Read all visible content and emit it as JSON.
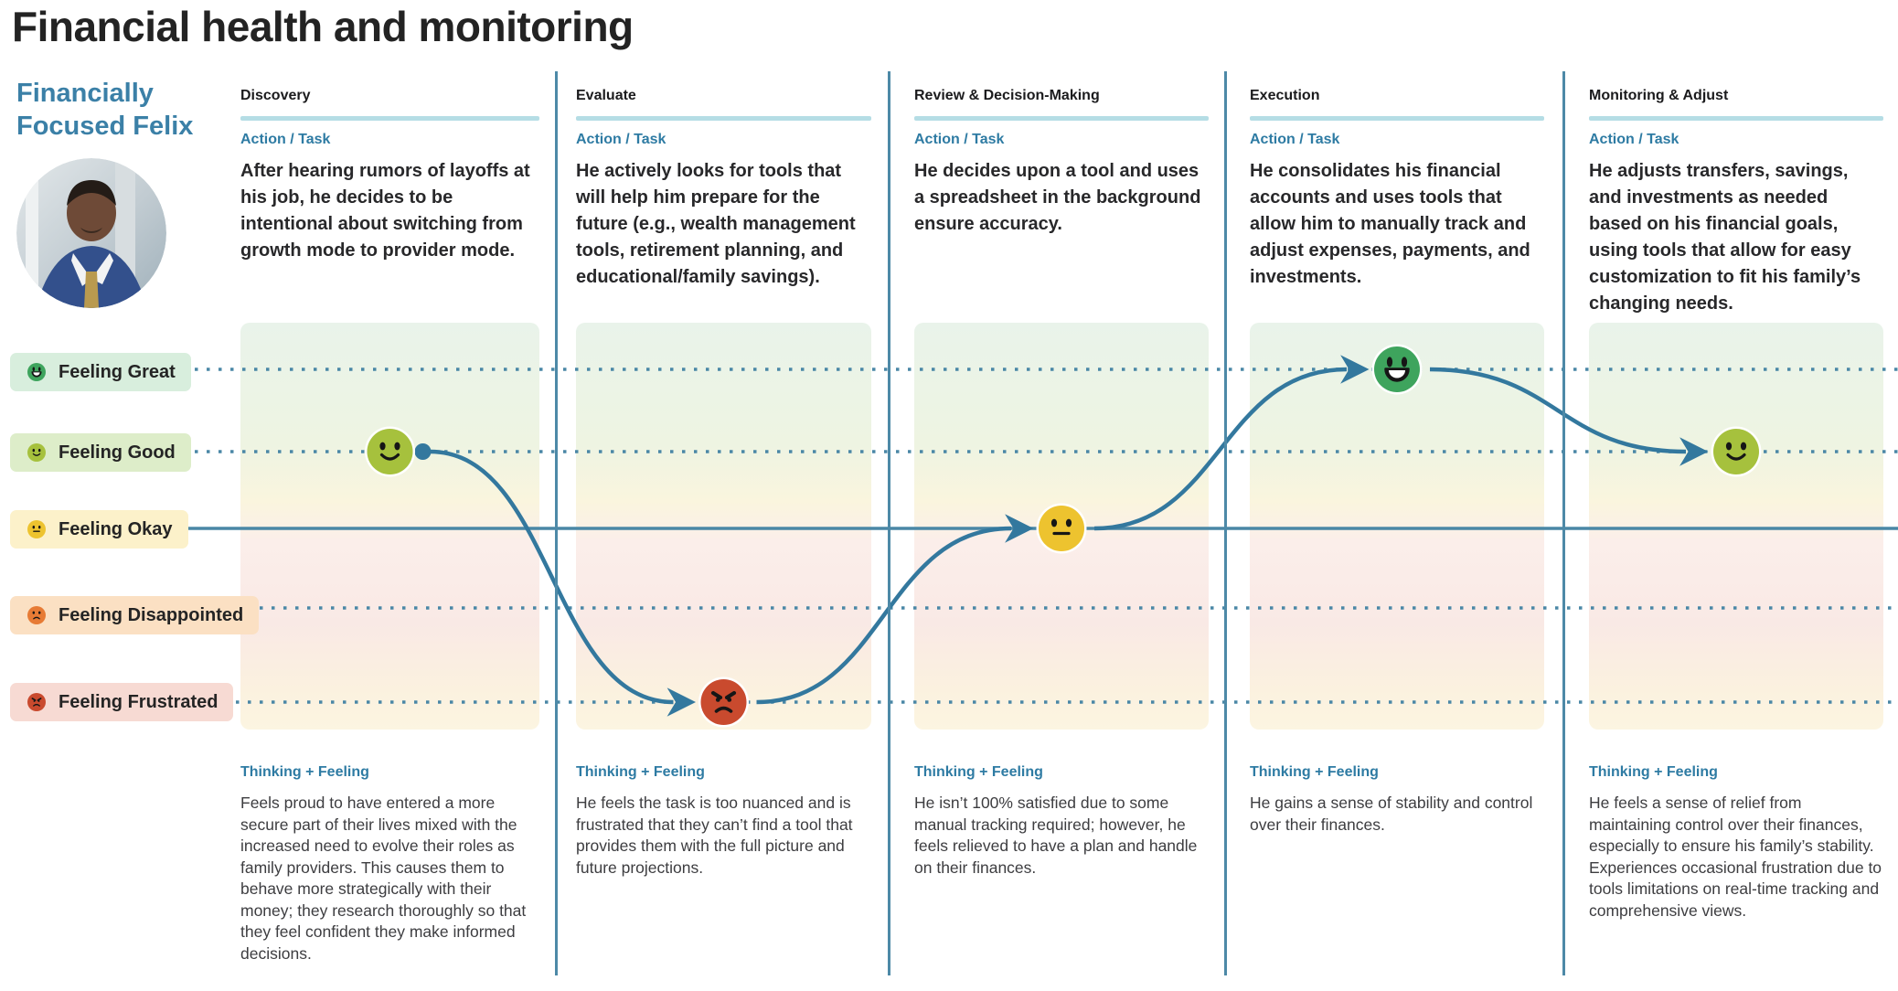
{
  "page": {
    "title": "Financial health and monitoring"
  },
  "persona": {
    "name_line1": "Financially",
    "name_line2": "Focused Felix"
  },
  "labels": {
    "action": "Action / Task",
    "thinking": "Thinking + Feeling"
  },
  "emotion_scale": {
    "levels": [
      {
        "id": "great",
        "label": "Feeling Great"
      },
      {
        "id": "good",
        "label": "Feeling Good"
      },
      {
        "id": "okay",
        "label": "Feeling Okay"
      },
      {
        "id": "disappointed",
        "label": "Feeling Disappointed"
      },
      {
        "id": "frustrated",
        "label": "Feeling Frustrated"
      }
    ]
  },
  "stages": [
    {
      "title": "Discovery",
      "action": "After hearing rumors of layoffs at his job, he decides to be intentional about switching from growth mode to provider mode.",
      "thinking": "Feels proud to have entered a more secure part of their lives mixed with the increased need to evolve their roles as family providers. This causes them to behave more strategically with their money; they research thoroughly so that they feel confident they make informed decisions."
    },
    {
      "title": "Evaluate",
      "action": "He actively looks for tools that will help him prepare for the future (e.g., wealth management tools, retirement planning, and educational/family savings).",
      "thinking": "He feels the task is too nuanced and is frustrated that they can’t find a tool that provides them with the full picture and future projections."
    },
    {
      "title": "Review & Decision-Making",
      "action": "He decides upon a tool and uses a spreadsheet in the background ensure accuracy.",
      "thinking": "He isn’t 100% satisfied due to some manual tracking required; however, he feels relieved to have a plan and handle on their finances."
    },
    {
      "title": "Execution",
      "action": "He consolidates his financial accounts and uses tools that allow him to manually track and adjust expenses, payments, and investments.",
      "thinking": "He gains a sense of stability and control over their finances."
    },
    {
      "title": "Monitoring & Adjust",
      "action": "He adjusts transfers, savings, and investments as needed based on his financial goals, using tools that allow for easy customization to fit his family’s changing needs.",
      "thinking": "He feels a sense of relief from maintaining control over their finances, especially to ensure his family’s stability. Experiences occasional frustration due to tools limitations on real-time tracking and comprehensive views."
    }
  ],
  "chart_data": {
    "type": "line",
    "title": "Emotion journey across stages",
    "x_stages": [
      "Discovery",
      "Evaluate",
      "Review & Decision-Making",
      "Execution",
      "Monitoring & Adjust"
    ],
    "y_levels": [
      "Feeling Great",
      "Feeling Good",
      "Feeling Okay",
      "Feeling Disappointed",
      "Feeling Frustrated"
    ],
    "points": [
      {
        "stage": "Discovery",
        "level": "good"
      },
      {
        "stage": "Evaluate",
        "level": "frustrated"
      },
      {
        "stage": "Review & Decision-Making",
        "level": "okay"
      },
      {
        "stage": "Execution",
        "level": "great"
      },
      {
        "stage": "Monitoring & Adjust",
        "level": "good"
      }
    ]
  },
  "colors": {
    "accent_blue": "#2e7ba3",
    "persona_name": "#3b80a7",
    "journey_line": "#33789e",
    "grid_line": "#4a87a6",
    "stage_underline": "#b5dde5",
    "divider": "#4d89a7",
    "emoji": {
      "great": "#3ea45d",
      "good": "#a6c13d",
      "okay": "#edc32f",
      "disappointed": "#e77b35",
      "frustrated": "#c94a2e"
    },
    "pills": {
      "great": "#d8eedd",
      "good": "#ddedc9",
      "okay": "#fcf1ca",
      "disappointed": "#fbe0c3",
      "frustrated": "#f7dad3"
    }
  }
}
